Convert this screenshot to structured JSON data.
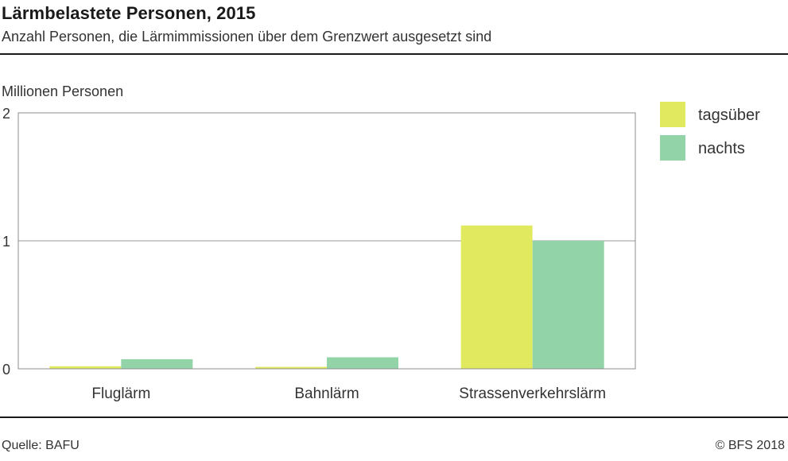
{
  "header": {
    "title": "Lärmbelastete Personen, 2015",
    "subtitle": "Anzahl Personen, die Lärmimmissionen über dem Grenzwert ausgesetzt sind"
  },
  "footer": {
    "source": "Quelle: BAFU",
    "copyright": "© BFS  2018"
  },
  "colors": {
    "tagsueber": "#e1ea5e",
    "nachts": "#92d4a8",
    "gridline": "#999999",
    "frame": "#8c8c8c"
  },
  "chart_data": {
    "type": "bar",
    "title": "Lärmbelastete Personen, 2015",
    "subtitle": "Anzahl Personen, die Lärmimmissionen über dem Grenzwert ausgesetzt sind",
    "ylabel": "Millionen Personen",
    "xlabel": "",
    "ylim": [
      0,
      2
    ],
    "yticks": [
      0,
      1,
      2
    ],
    "grid": true,
    "legend_position": "top-right",
    "categories": [
      "Fluglärm",
      "Bahnlärm",
      "Strassenverkehrslärm"
    ],
    "series": [
      {
        "name": "tagsüber",
        "color": "#e1ea5e",
        "values": [
          0.02,
          0.015,
          1.12
        ]
      },
      {
        "name": "nachts",
        "color": "#92d4a8",
        "values": [
          0.075,
          0.09,
          1.0
        ]
      }
    ]
  }
}
